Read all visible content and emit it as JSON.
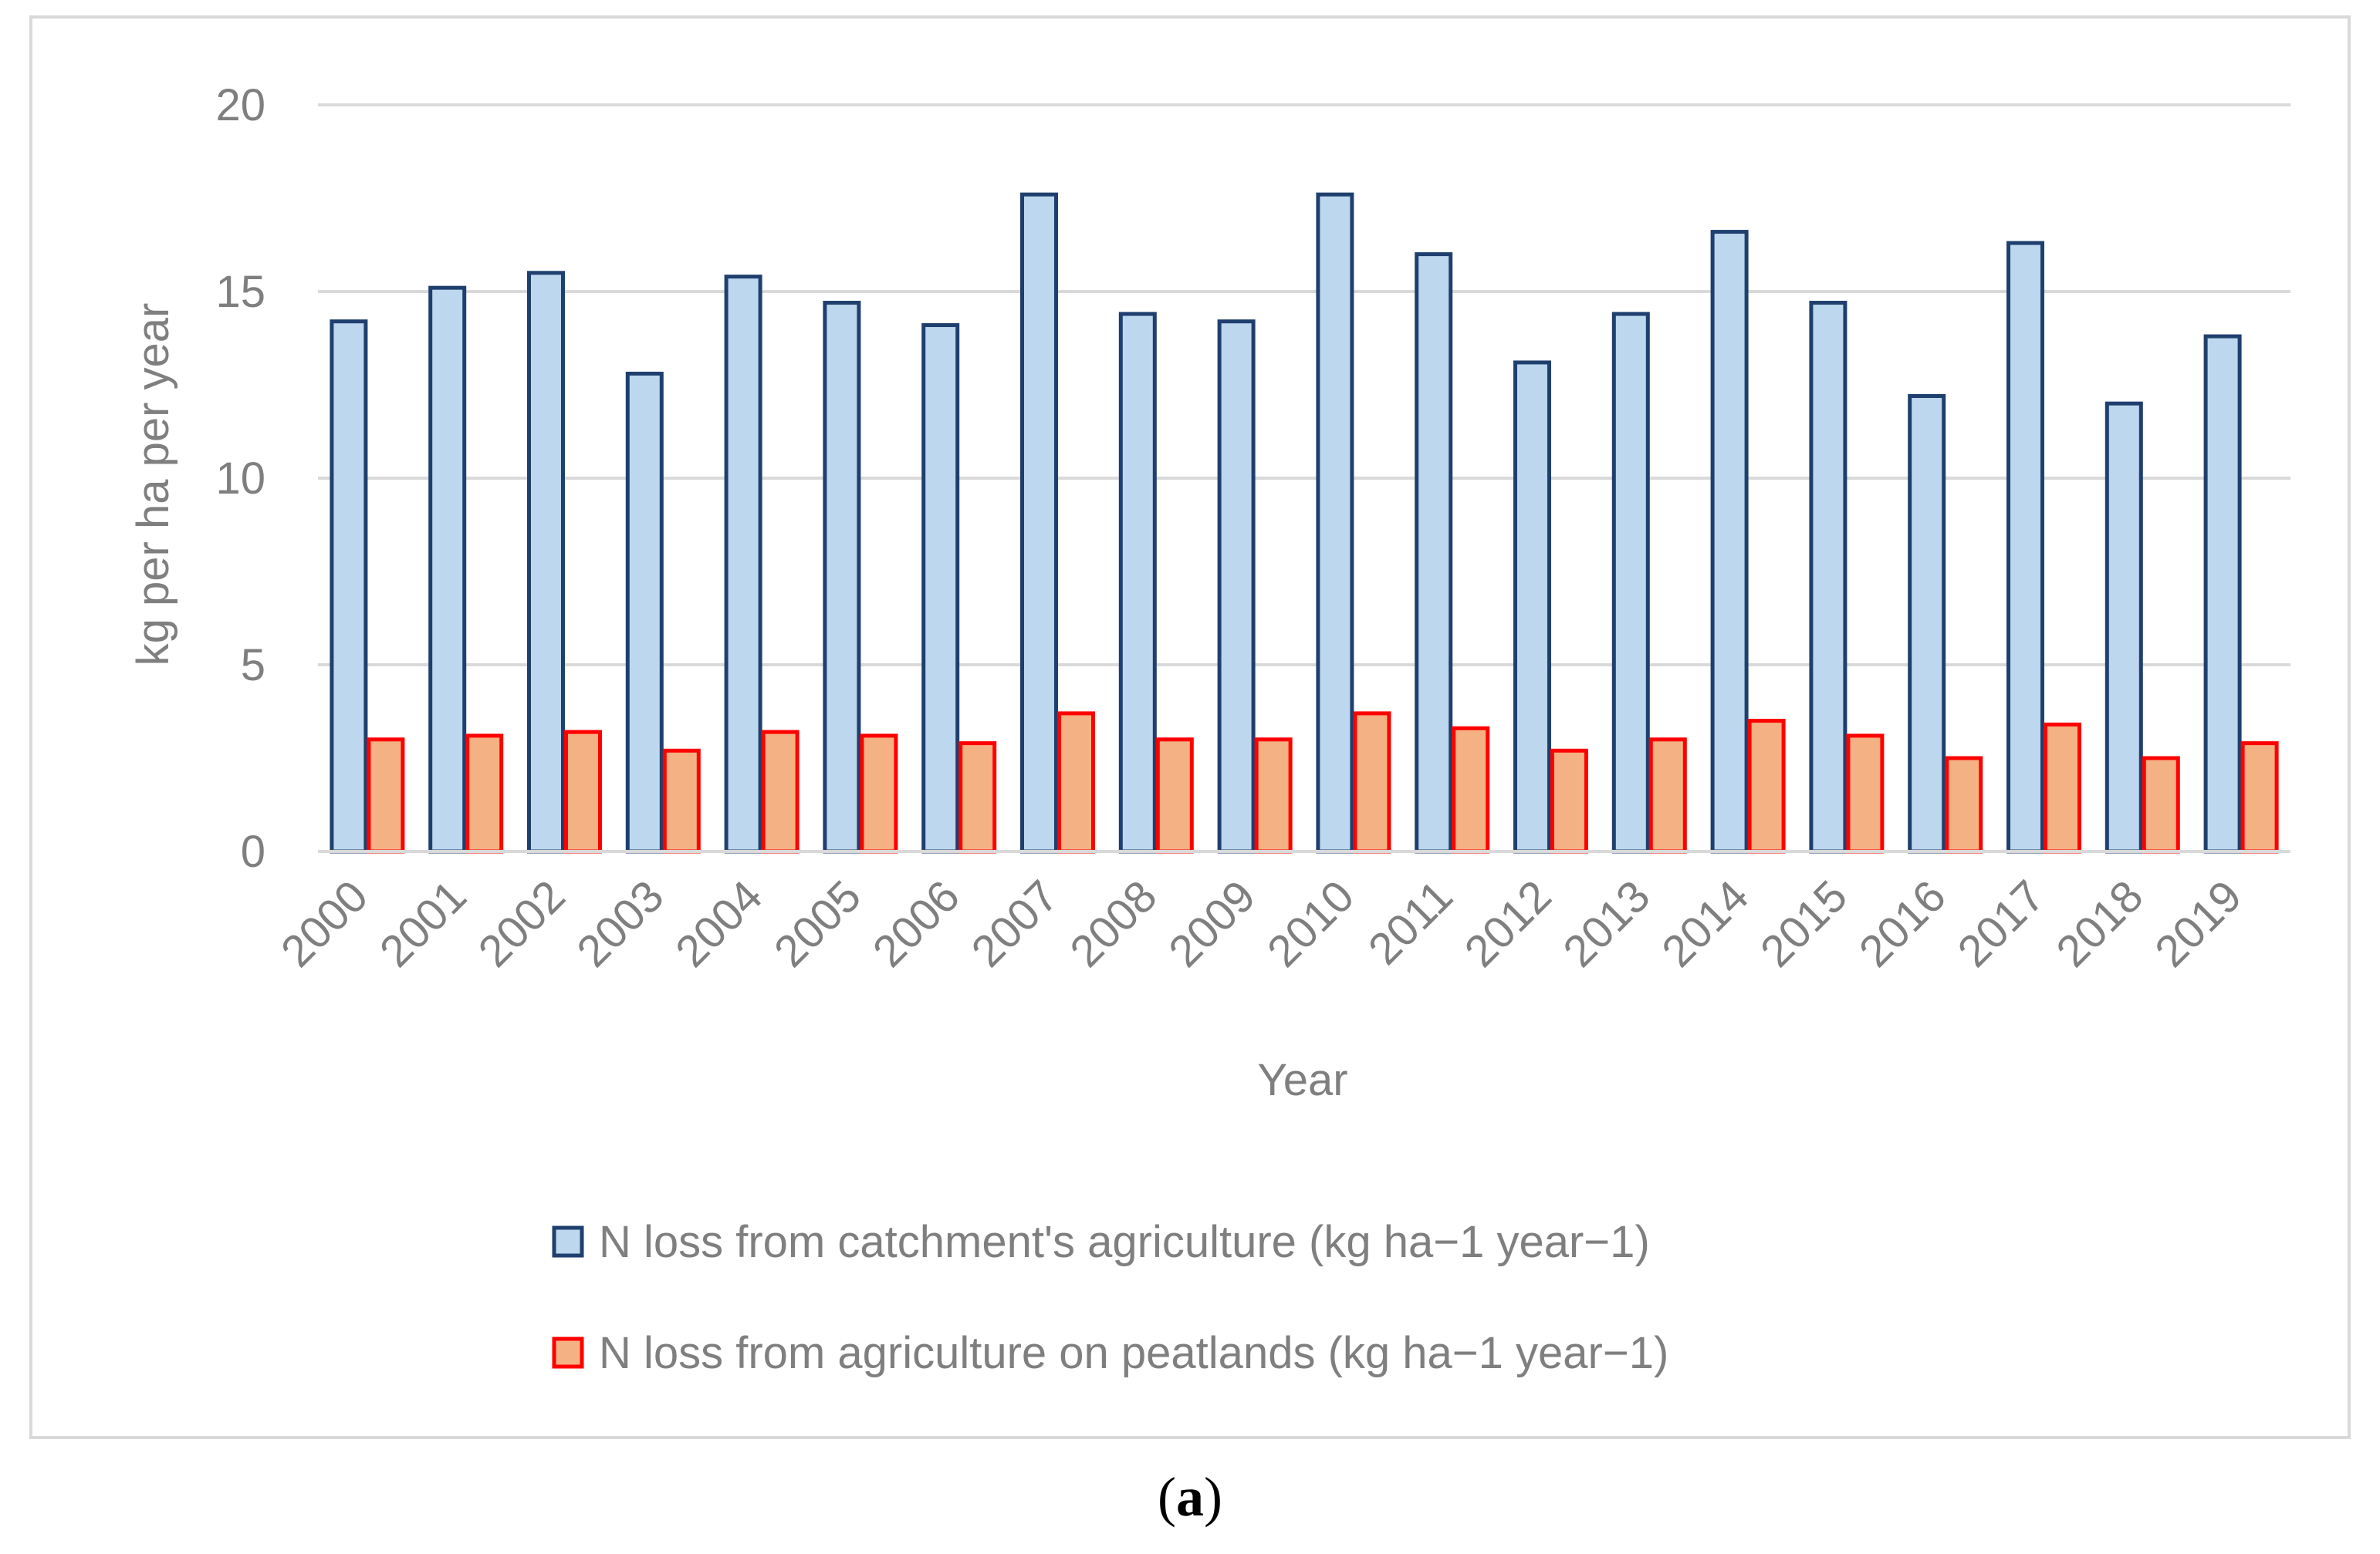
{
  "chart_data": {
    "type": "bar",
    "title": "",
    "xlabel": "Year",
    "ylabel": "kg per ha per year",
    "ylim": [
      0,
      20
    ],
    "yticks": [
      0,
      5,
      10,
      15,
      20
    ],
    "grid": true,
    "legend_position": "bottom",
    "categories": [
      "2000",
      "2001",
      "2002",
      "2003",
      "2004",
      "2005",
      "2006",
      "2007",
      "2008",
      "2009",
      "2010",
      "2011",
      "2012",
      "2013",
      "2014",
      "2015",
      "2016",
      "2017",
      "2018",
      "2019"
    ],
    "series": [
      {
        "name": "N loss from catchment's agriculture (kg ha−1 year−1)",
        "fill": "#bdd7ee",
        "stroke": "#1f3f6e",
        "values": [
          14.2,
          15.1,
          15.5,
          12.8,
          15.4,
          14.7,
          14.1,
          17.6,
          14.4,
          14.2,
          17.6,
          16.0,
          13.1,
          14.4,
          16.6,
          14.7,
          12.2,
          16.3,
          12.0,
          13.8
        ]
      },
      {
        "name": "N loss from agriculture on peatlands (kg ha−1 year−1)",
        "fill": "#f4b183",
        "stroke": "#ff0000",
        "values": [
          3.0,
          3.1,
          3.2,
          2.7,
          3.2,
          3.1,
          2.9,
          3.7,
          3.0,
          3.0,
          3.7,
          3.3,
          2.7,
          3.0,
          3.5,
          3.1,
          2.5,
          3.4,
          2.5,
          2.9
        ]
      }
    ]
  },
  "caption": {
    "open": "(",
    "letter": "a",
    "close": ")"
  }
}
